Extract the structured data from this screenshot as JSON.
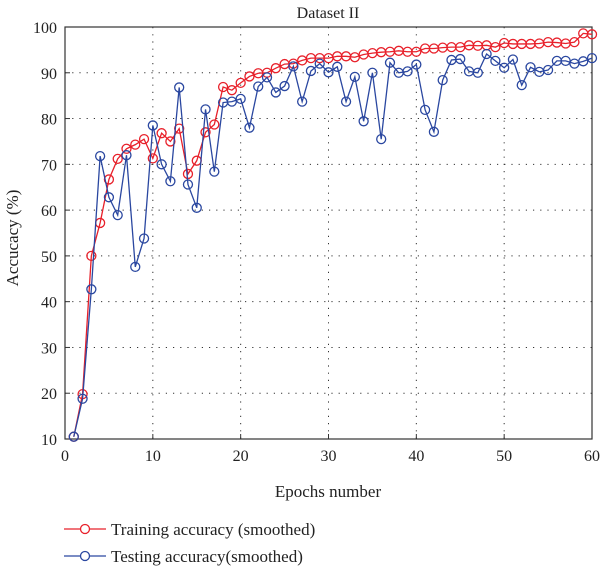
{
  "chart_data": {
    "type": "line",
    "title": "Dataset II",
    "xlabel": "Epochs number",
    "ylabel": "Accucacy (%)",
    "xlim": [
      0,
      60
    ],
    "ylim": [
      10,
      100
    ],
    "xticks": [
      0,
      10,
      20,
      30,
      40,
      50,
      60
    ],
    "yticks": [
      10,
      20,
      30,
      40,
      50,
      60,
      70,
      80,
      90,
      100
    ],
    "grid": "dotted",
    "legend_position": "bottom",
    "x": [
      1,
      2,
      3,
      4,
      5,
      6,
      7,
      8,
      9,
      10,
      11,
      12,
      13,
      14,
      15,
      16,
      17,
      18,
      19,
      20,
      21,
      22,
      23,
      24,
      25,
      26,
      27,
      28,
      29,
      30,
      31,
      32,
      33,
      34,
      35,
      36,
      37,
      38,
      39,
      40,
      41,
      42,
      43,
      44,
      45,
      46,
      47,
      48,
      49,
      50,
      51,
      52,
      53,
      54,
      55,
      56,
      57,
      58,
      59,
      60
    ],
    "series": [
      {
        "name": "Training accuracy (smoothed)",
        "color": "#e8202a",
        "values": [
          10.5,
          19.8,
          50,
          57.2,
          66.7,
          71.2,
          73.4,
          74.3,
          75.5,
          71.3,
          76.8,
          75,
          77.8,
          67.9,
          70.8,
          77,
          78.7,
          86.9,
          86.2,
          87.8,
          89.2,
          89.9,
          90,
          91,
          91.9,
          92,
          92.7,
          93.2,
          93.2,
          93.2,
          93.6,
          93.6,
          93.4,
          94,
          94.3,
          94.5,
          94.6,
          94.8,
          94.6,
          94.6,
          95.3,
          95.3,
          95.5,
          95.6,
          95.6,
          96,
          95.9,
          96,
          95.6,
          96.5,
          96.3,
          96.3,
          96.3,
          96.4,
          96.7,
          96.6,
          96.4,
          96.7,
          98.6,
          98.4
        ]
      },
      {
        "name": "Testing accuracy(smoothed)",
        "color": "#2a47a0",
        "values": [
          10.5,
          18.8,
          42.7,
          71.8,
          62.8,
          58.9,
          72,
          47.6,
          53.8,
          78.5,
          70,
          66.3,
          86.8,
          65.6,
          60.5,
          82,
          68.4,
          83.5,
          83.7,
          84.3,
          78,
          87,
          89,
          85.7,
          87.1,
          91.4,
          83.7,
          90.4,
          92,
          90.1,
          91.3,
          83.7,
          89.1,
          79.4,
          90,
          75.5,
          92.2,
          90,
          90.3,
          91.8,
          81.9,
          77.1,
          88.4,
          92.8,
          93,
          90.3,
          90,
          94.1,
          92.6,
          91.1,
          92.9,
          87.3,
          91.2,
          90.2,
          90.6,
          92.6,
          92.6,
          92,
          92.5,
          93.2
        ]
      }
    ]
  }
}
